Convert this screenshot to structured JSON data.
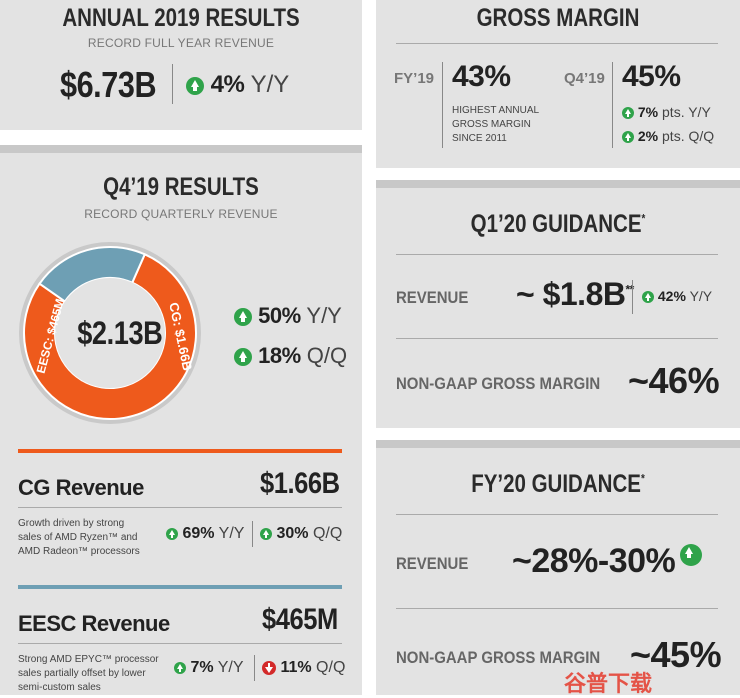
{
  "annual": {
    "title": "ANNUAL 2019 RESULTS",
    "subtitle": "RECORD FULL YEAR REVENUE",
    "revenue": "$6.73B",
    "growth": "4%",
    "growth_unit": "Y/Y"
  },
  "gross_margin": {
    "title": "GROSS MARGIN",
    "fy_label": "FY’19",
    "fy_value": "43%",
    "fy_note": [
      "HIGHEST ANNUAL",
      "GROSS MARGIN",
      "SINCE 2011"
    ],
    "q4_label": "Q4’19",
    "q4_value": "45%",
    "q4_yy": "7%",
    "q4_yy_unit": "pts. Y/Y",
    "q4_qq": "2%",
    "q4_qq_unit": "pts. Q/Q"
  },
  "q4": {
    "title": "Q4’19 RESULTS",
    "subtitle": "RECORD QUARTERLY REVENUE",
    "total": "$2.13B",
    "yy": "50%",
    "yy_unit": "Y/Y",
    "qq": "18%",
    "qq_unit": "Q/Q",
    "donut_eesc_label": "EESC: $465M",
    "donut_cg_label": "CG: $1.66B",
    "donut_cg_share": 0.781,
    "colors": {
      "cg": "#ee5a1c",
      "eesc": "#6e9fb4"
    }
  },
  "cg": {
    "title": "CG Revenue",
    "value": "$1.66B",
    "desc": [
      "Growth driven by strong",
      "sales of AMD Ryzen™ and",
      "AMD Radeon™ processors"
    ],
    "yy": "69%",
    "yy_unit": "Y/Y",
    "qq": "30%",
    "qq_unit": "Q/Q"
  },
  "eesc": {
    "title": "EESC Revenue",
    "value": "$465M",
    "desc": [
      "Strong AMD EPYC™ processor",
      "sales partially offset by lower",
      "semi-custom sales"
    ],
    "yy": "7%",
    "yy_unit": "Y/Y",
    "qq": "11%",
    "qq_unit": "Q/Q"
  },
  "q1": {
    "title": "Q1’20 GUIDANCE",
    "title_mark": "*",
    "revenue_label": "REVENUE",
    "revenue_value": "~ $1.8B",
    "revenue_mark": "**",
    "revenue_yy": "42%",
    "revenue_yy_unit": "Y/Y",
    "gm_label": "NON-GAAP GROSS MARGIN",
    "gm_value": "~46%"
  },
  "fy20": {
    "title": "FY’20 GUIDANCE",
    "title_mark": "*",
    "revenue_label": "REVENUE",
    "revenue_value": "~28%-30%",
    "gm_label": "NON-GAAP GROSS MARGIN",
    "gm_value": "~45%"
  },
  "watermark": "谷普下载"
}
